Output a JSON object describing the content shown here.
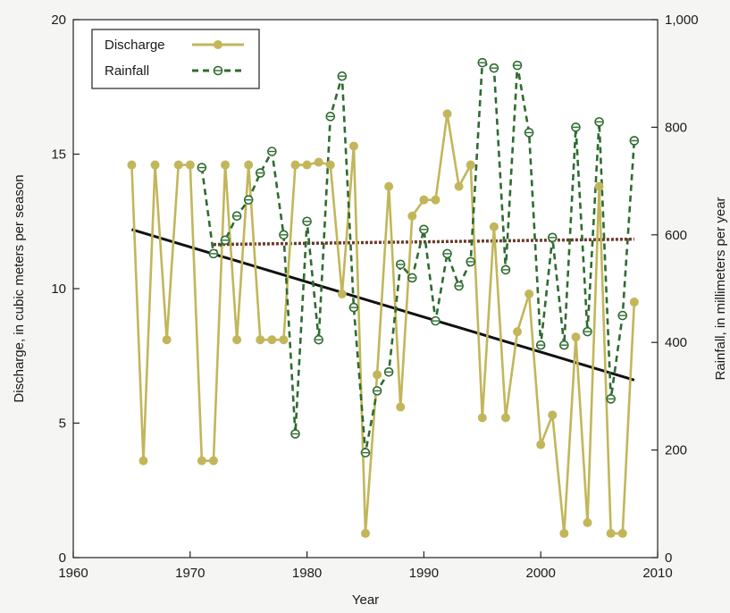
{
  "chart_data": {
    "type": "line",
    "title": "",
    "xlabel": "Year",
    "ylabel_left": "Discharge, in cubic meters per season",
    "ylabel_right": "Rainfall, in millimeters per year",
    "xlim": [
      1960,
      2010
    ],
    "ylim_left": [
      0,
      20
    ],
    "ylim_right": [
      0,
      1000
    ],
    "x_ticks": [
      "1960",
      "1970",
      "1980",
      "1990",
      "2000",
      "2010"
    ],
    "y_ticks_left": [
      "0",
      "5",
      "10",
      "15",
      "20"
    ],
    "y_ticks_right": [
      "0",
      "200",
      "400",
      "600",
      "800",
      "1,000"
    ],
    "grid": false,
    "legend_position": "top-left",
    "colors": {
      "discharge": "#c2b65a",
      "rainfall": "#2e6b30",
      "discharge_trend": "#111111",
      "rainfall_trend": "#6b3a2a"
    },
    "series": [
      {
        "name": "Discharge",
        "axis": "left",
        "style": "solid-filled-circle",
        "x": [
          1965,
          1966,
          1967,
          1968,
          1969,
          1970,
          1971,
          1972,
          1973,
          1974,
          1975,
          1976,
          1977,
          1978,
          1979,
          1980,
          1981,
          1982,
          1983,
          1984,
          1985,
          1986,
          1987,
          1988,
          1989,
          1990,
          1991,
          1992,
          1993,
          1994,
          1995,
          1996,
          1997,
          1998,
          1999,
          2000,
          2001,
          2002,
          2003,
          2004,
          2005,
          2006,
          2007,
          2008
        ],
        "values": [
          14.6,
          3.6,
          14.6,
          8.1,
          14.6,
          14.6,
          3.6,
          3.6,
          14.6,
          8.1,
          14.6,
          8.1,
          8.1,
          8.1,
          14.6,
          14.6,
          14.7,
          14.6,
          9.8,
          15.3,
          0.9,
          6.8,
          13.8,
          5.6,
          12.7,
          13.3,
          13.3,
          16.5,
          13.8,
          14.6,
          5.2,
          12.3,
          5.2,
          8.4,
          9.8,
          4.2,
          5.3,
          0.9,
          8.2,
          1.3,
          13.8,
          0.9,
          0.9,
          9.5
        ]
      },
      {
        "name": "Rainfall",
        "axis": "right",
        "style": "dashed-open-circle",
        "x": [
          1971,
          1972,
          1973,
          1974,
          1975,
          1976,
          1977,
          1978,
          1979,
          1980,
          1981,
          1982,
          1983,
          1984,
          1985,
          1986,
          1987,
          1988,
          1989,
          1990,
          1991,
          1992,
          1993,
          1994,
          1995,
          1996,
          1997,
          1998,
          1999,
          2000,
          2001,
          2002,
          2003,
          2004,
          2005,
          2006,
          2007,
          2008
        ],
        "values": [
          725,
          565,
          590,
          635,
          665,
          715,
          755,
          600,
          230,
          625,
          405,
          820,
          895,
          465,
          195,
          310,
          345,
          545,
          520,
          610,
          440,
          565,
          505,
          550,
          920,
          910,
          535,
          915,
          790,
          395,
          595,
          395,
          800,
          420,
          810,
          295,
          450,
          775
        ]
      }
    ],
    "trend_lines": [
      {
        "series": "Discharge",
        "axis": "left",
        "x": [
          1965,
          2008
        ],
        "values": [
          12.2,
          6.6
        ]
      },
      {
        "series": "Rainfall",
        "axis": "right",
        "x": [
          1972,
          2008
        ],
        "values": [
          582,
          592
        ]
      }
    ]
  }
}
